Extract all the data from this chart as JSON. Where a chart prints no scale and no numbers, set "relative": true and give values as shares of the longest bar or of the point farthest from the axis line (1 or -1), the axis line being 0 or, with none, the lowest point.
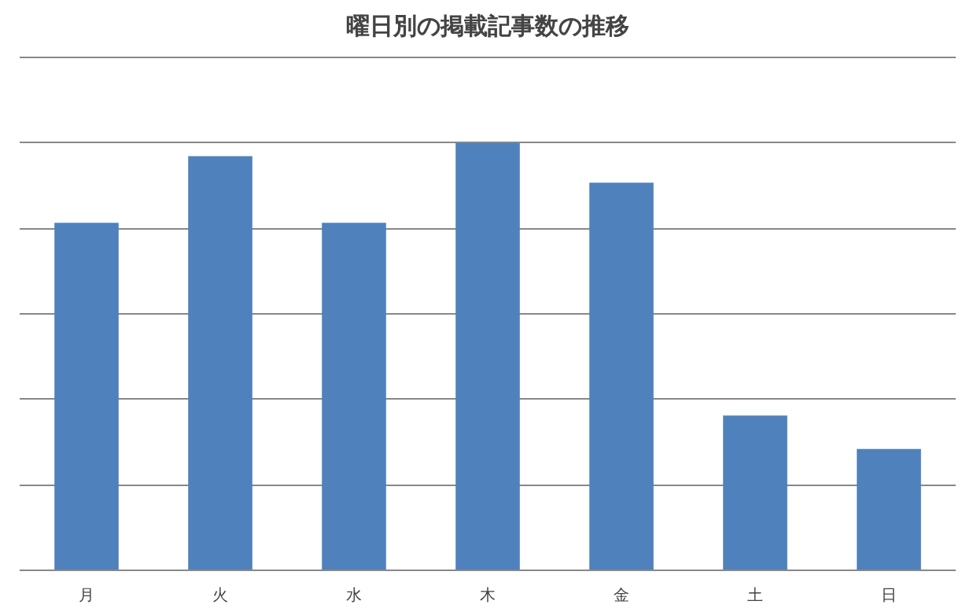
{
  "chart_data": {
    "type": "bar",
    "title": "曜日別の掲載記事数の推移",
    "categories": [
      "月",
      "火",
      "水",
      "木",
      "金",
      "土",
      "日"
    ],
    "values": [
      0.813,
      0.969,
      0.813,
      1,
      0.907,
      0.362,
      0.284
    ],
    "color": "#4f81bd",
    "relative": true,
    "grid": "y"
  }
}
